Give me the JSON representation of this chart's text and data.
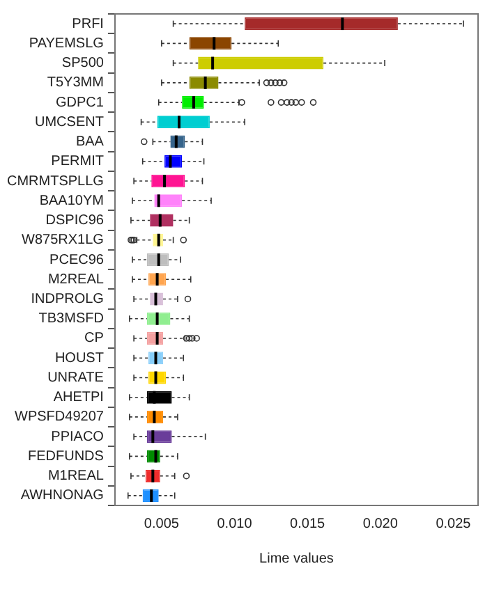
{
  "chart_data": {
    "type": "box",
    "orientation": "horizontal",
    "xlabel": "Lime values",
    "grid": false,
    "legend": false,
    "categories": [
      "PRFI",
      "PAYEMSLG",
      "SP500",
      "T5Y3MM",
      "GDPC1",
      "UMCSENT",
      "BAA",
      "PERMIT",
      "CMRMTSPLLG",
      "BAA10YM",
      "DSPIC96",
      "W875RX1LG",
      "PCEC96",
      "M2REAL",
      "INDPROLG",
      "TB3MSFD",
      "CP",
      "HOUST",
      "UNRATE",
      "AHETPI",
      "WPSFD49207",
      "PPIACO",
      "FEDFUNDS",
      "M1REAL",
      "AWHNONAG"
    ],
    "colors": [
      "#a52a2a",
      "#8b4500",
      "#cdcd00",
      "#8b8b00",
      "#00ee00",
      "#00ced1",
      "#36648b",
      "#0000ff",
      "#ff1493",
      "#ff83fa",
      "#b03060",
      "#fff68f",
      "#bebebe",
      "#ffa54f",
      "#d8bfd8",
      "#90ee90",
      "#f4a0a0",
      "#87cefa",
      "#ffd700",
      "#000000",
      "#ff8c00",
      "#6a3d9a",
      "#008b00",
      "#ee2c2c",
      "#1e90ff"
    ],
    "boxes": [
      {
        "low": 0.0058,
        "q1": 0.0107,
        "median": 0.0174,
        "q3": 0.0212,
        "high": 0.0257
      },
      {
        "low": 0.005,
        "q1": 0.0069,
        "median": 0.0086,
        "q3": 0.0098,
        "high": 0.013
      },
      {
        "low": 0.0058,
        "q1": 0.0075,
        "median": 0.0085,
        "q3": 0.0161,
        "high": 0.0203
      },
      {
        "low": 0.005,
        "q1": 0.0069,
        "median": 0.008,
        "q3": 0.0089,
        "high": 0.0117,
        "outliers": [
          0.0122,
          0.0125,
          0.0128,
          0.0131,
          0.0134
        ]
      },
      {
        "low": 0.0048,
        "q1": 0.0064,
        "median": 0.0072,
        "q3": 0.0079,
        "high": 0.0103,
        "outliers": [
          0.0105,
          0.0125,
          0.0132,
          0.0136,
          0.0139,
          0.0142,
          0.0146,
          0.0154
        ]
      },
      {
        "low": 0.0036,
        "q1": 0.0047,
        "median": 0.0062,
        "q3": 0.0083,
        "high": 0.0107
      },
      {
        "low": 0.0044,
        "q1": 0.0056,
        "median": 0.006,
        "q3": 0.0066,
        "high": 0.0078,
        "outliers": [
          0.0038
        ]
      },
      {
        "low": 0.0037,
        "q1": 0.0052,
        "median": 0.0056,
        "q3": 0.0064,
        "high": 0.0079
      },
      {
        "low": 0.0031,
        "q1": 0.0043,
        "median": 0.0052,
        "q3": 0.0066,
        "high": 0.0078
      },
      {
        "low": 0.003,
        "q1": 0.0045,
        "median": 0.0048,
        "q3": 0.0064,
        "high": 0.0084
      },
      {
        "low": 0.0029,
        "q1": 0.0042,
        "median": 0.0049,
        "q3": 0.0058,
        "high": 0.0069
      },
      {
        "low": 0.0033,
        "q1": 0.0044,
        "median": 0.0048,
        "q3": 0.0051,
        "high": 0.0058,
        "outliers": [
          0.0029,
          0.003,
          0.0031,
          0.0065
        ]
      },
      {
        "low": 0.003,
        "q1": 0.004,
        "median": 0.0048,
        "q3": 0.0055,
        "high": 0.0063
      },
      {
        "low": 0.003,
        "q1": 0.0041,
        "median": 0.0047,
        "q3": 0.0053,
        "high": 0.007
      },
      {
        "low": 0.0031,
        "q1": 0.0042,
        "median": 0.0046,
        "q3": 0.0051,
        "high": 0.0061,
        "outliers": [
          0.0068
        ]
      },
      {
        "low": 0.0028,
        "q1": 0.004,
        "median": 0.0047,
        "q3": 0.0056,
        "high": 0.0069
      },
      {
        "low": 0.0031,
        "q1": 0.004,
        "median": 0.0047,
        "q3": 0.0051,
        "high": 0.0066,
        "outliers": [
          0.0067,
          0.0069,
          0.0071,
          0.0074
        ]
      },
      {
        "low": 0.0031,
        "q1": 0.0041,
        "median": 0.0046,
        "q3": 0.0051,
        "high": 0.0065
      },
      {
        "low": 0.0031,
        "q1": 0.0041,
        "median": 0.0046,
        "q3": 0.0053,
        "high": 0.0065
      },
      {
        "low": 0.0028,
        "q1": 0.004,
        "median": 0.0045,
        "q3": 0.0057,
        "high": 0.0069
      },
      {
        "low": 0.0028,
        "q1": 0.004,
        "median": 0.0045,
        "q3": 0.0051,
        "high": 0.0061
      },
      {
        "low": 0.0031,
        "q1": 0.004,
        "median": 0.0044,
        "q3": 0.0057,
        "high": 0.008
      },
      {
        "low": 0.0028,
        "q1": 0.004,
        "median": 0.0046,
        "q3": 0.0049,
        "high": 0.0061
      },
      {
        "low": 0.0029,
        "q1": 0.0039,
        "median": 0.0044,
        "q3": 0.0049,
        "high": 0.0059,
        "outliers": [
          0.0067
        ]
      },
      {
        "low": 0.0027,
        "q1": 0.0037,
        "median": 0.0043,
        "q3": 0.0048,
        "high": 0.0059
      }
    ],
    "xlim": [
      0.0018,
      0.0267
    ],
    "xticks": [
      0.005,
      {
        "value": 0.01,
        "label": "0.010"
      },
      0.015,
      {
        "value": 0.02,
        "label": "0.020"
      },
      0.025
    ]
  }
}
